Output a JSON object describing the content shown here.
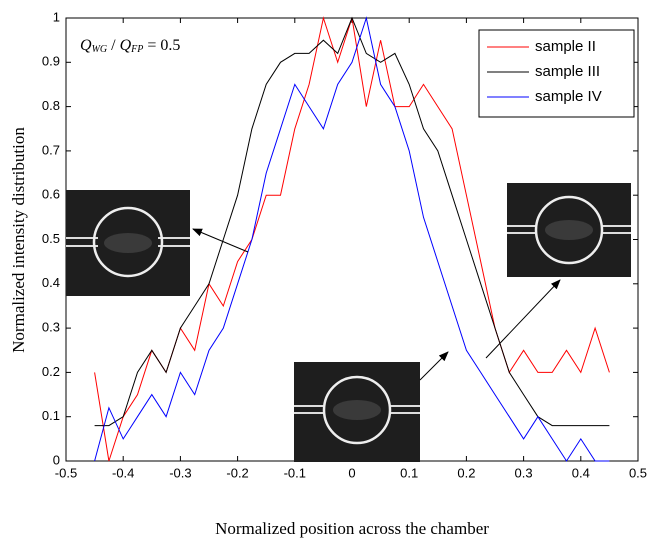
{
  "chart_data": {
    "type": "line",
    "xlabel": "Normalized position across the chamber",
    "ylabel": "Normalized intensity distribution",
    "annotation": {
      "q1": "Q",
      "sub1": "WG",
      "slash": " / ",
      "q2": "Q",
      "sub2": "FP",
      "rest": " = 0.5"
    },
    "xlim": [
      -0.5,
      0.5
    ],
    "ylim": [
      0,
      1
    ],
    "xticks": [
      -0.5,
      -0.4,
      -0.3,
      -0.2,
      -0.1,
      0,
      0.1,
      0.2,
      0.3,
      0.4,
      0.5
    ],
    "yticks": [
      0,
      0.1,
      0.2,
      0.3,
      0.4,
      0.5,
      0.6,
      0.7,
      0.8,
      0.9,
      1
    ],
    "legend": "upper right",
    "x": [
      -0.45,
      -0.425,
      -0.4,
      -0.375,
      -0.35,
      -0.325,
      -0.3,
      -0.275,
      -0.25,
      -0.225,
      -0.2,
      -0.175,
      -0.15,
      -0.125,
      -0.1,
      -0.075,
      -0.05,
      -0.025,
      0,
      0.025,
      0.05,
      0.075,
      0.1,
      0.125,
      0.15,
      0.175,
      0.2,
      0.225,
      0.25,
      0.275,
      0.3,
      0.325,
      0.35,
      0.375,
      0.4,
      0.425,
      0.45
    ],
    "series": [
      {
        "name": "sample II",
        "color": "#ff0000",
        "values": [
          0.2,
          0,
          0.1,
          0.15,
          0.25,
          0.2,
          0.3,
          0.25,
          0.4,
          0.35,
          0.45,
          0.5,
          0.6,
          0.6,
          0.75,
          0.85,
          1,
          0.9,
          1,
          0.8,
          0.95,
          0.8,
          0.8,
          0.85,
          0.8,
          0.75,
          0.6,
          0.45,
          0.3,
          0.2,
          0.25,
          0.2,
          0.2,
          0.25,
          0.2,
          0.3,
          0.2
        ]
      },
      {
        "name": "sample III",
        "color": "#000000",
        "values": [
          0.08,
          0.08,
          0.1,
          0.2,
          0.25,
          0.2,
          0.3,
          0.35,
          0.4,
          0.5,
          0.6,
          0.75,
          0.85,
          0.9,
          0.92,
          0.92,
          0.95,
          0.92,
          1,
          0.92,
          0.9,
          0.92,
          0.85,
          0.75,
          0.7,
          0.6,
          0.5,
          0.4,
          0.3,
          0.2,
          0.15,
          0.1,
          0.08,
          0.08,
          0.08,
          0.08,
          0.08
        ]
      },
      {
        "name": "sample IV",
        "color": "#0000ff",
        "values": [
          0,
          0.12,
          0.05,
          0.1,
          0.15,
          0.1,
          0.2,
          0.15,
          0.25,
          0.3,
          0.4,
          0.5,
          0.65,
          0.75,
          0.85,
          0.8,
          0.75,
          0.85,
          0.9,
          1,
          0.85,
          0.8,
          0.7,
          0.55,
          0.45,
          0.35,
          0.25,
          0.2,
          0.15,
          0.1,
          0.05,
          0.1,
          0.05,
          0,
          0.05,
          0,
          0
        ]
      }
    ]
  }
}
